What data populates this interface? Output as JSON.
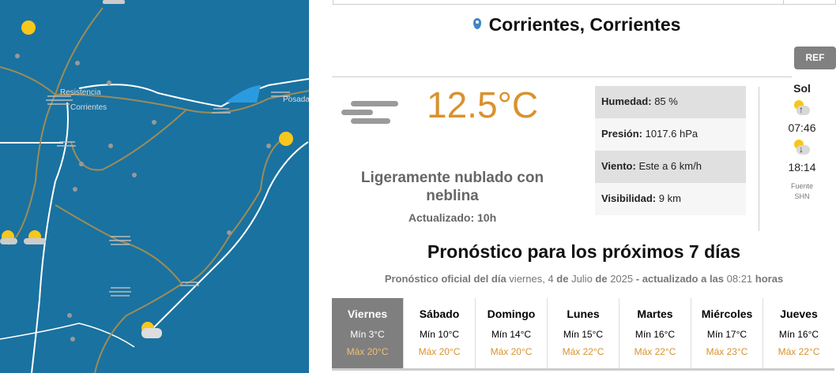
{
  "map": {
    "labels": [
      "Resistencia",
      "Corrientes",
      "Posada"
    ]
  },
  "location": {
    "title": "Corrientes, Corrientes",
    "icon": "map-pin-icon"
  },
  "ref_button": "REF",
  "current": {
    "icon": "fog-icon",
    "temperature": "12.5°C",
    "description": "Ligeramente nublado con neblina",
    "updated": "Actualizado: 10h",
    "stats": [
      {
        "label": "Humedad:",
        "value": "85 %"
      },
      {
        "label": "Presión:",
        "value": "1017.6 hPa"
      },
      {
        "label": "Viento:",
        "value": "Este a 6 km/h"
      },
      {
        "label": "Visibilidad:",
        "value": "9 km"
      }
    ]
  },
  "sun": {
    "heading": "Sol",
    "sunrise": "07:46",
    "sunset": "18:14",
    "source_line1": "Fuente",
    "source_line2": "SHN"
  },
  "forecast": {
    "title": "Pronóstico para los próximos 7 días",
    "subtitle": {
      "p1": "Pronóstico oficial del día",
      "p2": " viernes, 4 ",
      "p3": "de",
      "p4": " Julio ",
      "p5": "de",
      "p6": " 2025 ",
      "p7": "- actualizado a las",
      "p8": " 08:21 ",
      "p9": "horas"
    },
    "days": [
      {
        "name": "Viernes",
        "min": "Mín 3°C",
        "max": "Máx 20°C"
      },
      {
        "name": "Sábado",
        "min": "Mín 10°C",
        "max": "Máx 20°C"
      },
      {
        "name": "Domingo",
        "min": "Mín 14°C",
        "max": "Máx 20°C"
      },
      {
        "name": "Lunes",
        "min": "Mín 15°C",
        "max": "Máx 22°C"
      },
      {
        "name": "Martes",
        "min": "Mín 16°C",
        "max": "Máx 22°C"
      },
      {
        "name": "Miércoles",
        "min": "Mín 17°C",
        "max": "Máx 23°C"
      },
      {
        "name": "Jueves",
        "min": "Mín 16°C",
        "max": "Máx 22°C"
      }
    ]
  }
}
